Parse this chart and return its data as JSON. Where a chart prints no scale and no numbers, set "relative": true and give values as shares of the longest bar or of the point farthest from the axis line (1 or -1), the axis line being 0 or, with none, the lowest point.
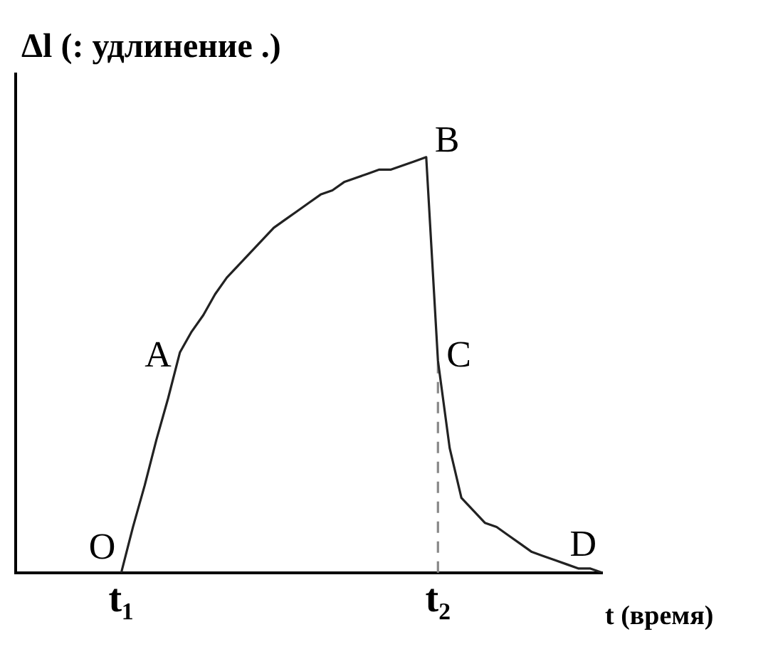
{
  "chart_data": {
    "type": "line",
    "relative": true,
    "xlabel": "t (время)",
    "ylabel": "Δl (: удлинение .)",
    "categories": [
      null,
      null,
      null,
      null,
      null,
      null,
      null,
      null,
      null,
      "t₁",
      null,
      null,
      null,
      null,
      null,
      null,
      null,
      null,
      null,
      null,
      null,
      null,
      null,
      null,
      null,
      null,
      null,
      null,
      null,
      null,
      null,
      null,
      null,
      null,
      null,
      null,
      "t₂",
      null,
      null,
      null,
      null,
      null,
      null,
      null,
      null,
      null,
      null,
      null,
      null,
      null,
      null
    ],
    "series": [
      {
        "color": "#222222",
        "values": [
          null,
          null,
          null,
          null,
          null,
          null,
          null,
          null,
          null,
          0,
          0.11,
          0.21,
          0.32,
          0.42,
          0.53,
          0.58,
          0.62,
          0.67,
          0.71,
          0.74,
          0.77,
          0.8,
          0.83,
          0.85,
          0.87,
          0.89,
          0.91,
          0.92,
          0.94,
          0.95,
          0.96,
          0.97,
          0.97,
          0.98,
          0.99,
          1,
          0.51,
          0.3,
          0.18,
          0.15,
          0.12,
          0.11,
          0.09,
          0.07,
          0.05,
          0.04,
          0.03,
          0.02,
          0.01,
          0.01,
          0
        ]
      }
    ],
    "ref_lines": [
      {
        "axis": "x",
        "value": "t₂",
        "color": "#888888",
        "line_style": "dashed"
      }
    ],
    "annotations": [
      {
        "text": "O",
        "x": "t₁",
        "y": 0
      },
      "A",
      "B",
      {
        "text": "C",
        "x": "t₂",
        "y": 0.51
      },
      "D"
    ],
    "grid": false,
    "legend": false,
    "marker": "none",
    "line_style": "solid"
  }
}
